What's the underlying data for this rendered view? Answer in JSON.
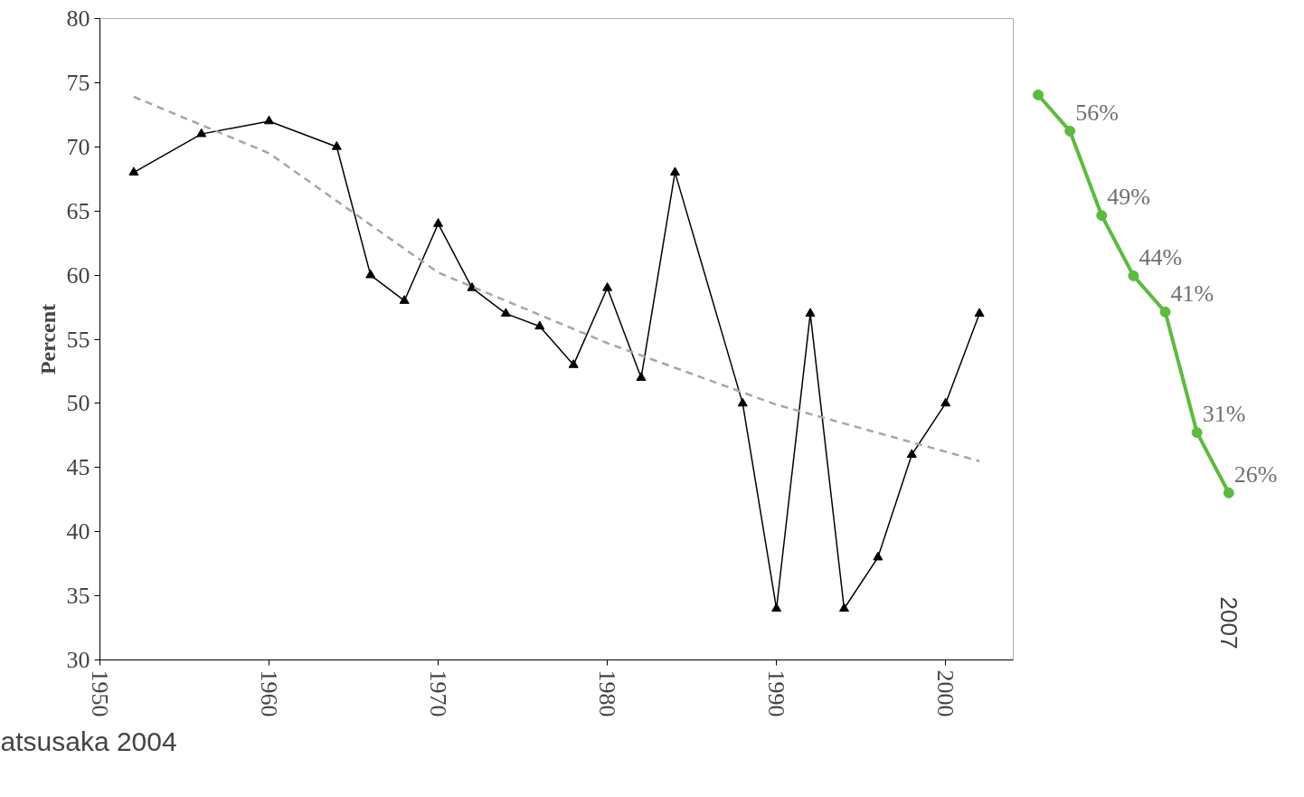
{
  "chart_data": [
    {
      "type": "line",
      "ylabel": "Percent",
      "x": [
        1952,
        1956,
        1960,
        1964,
        1966,
        1968,
        1970,
        1972,
        1974,
        1976,
        1978,
        1980,
        1982,
        1984,
        1988,
        1990,
        1992,
        1994,
        1996,
        1998,
        2000,
        2002
      ],
      "series": [
        {
          "color": "#000000",
          "values": [
            68,
            71,
            72,
            70,
            60,
            58,
            64,
            59,
            57,
            56,
            53,
            59,
            52,
            68,
            50,
            34,
            57,
            34,
            38,
            46,
            50,
            57
          ]
        },
        {
          "type": "line",
          "x": [
            1952,
            1960,
            1970,
            1980,
            1990,
            2002
          ],
          "values": [
            73.9,
            69.5,
            60.2,
            54.7,
            49.9,
            45.5
          ],
          "color": "#a6a6a6",
          "line_style": "dashed",
          "marker": "none"
        }
      ],
      "marker": "triangle",
      "line_style": "solid",
      "xlim": [
        1950,
        2004
      ],
      "xticks": [
        1950,
        1960,
        1970,
        1980,
        1990,
        2000
      ],
      "ylim": [
        30,
        80
      ],
      "yticks": [
        30,
        35,
        40,
        45,
        50,
        55,
        60,
        65,
        70,
        75,
        80
      ],
      "grid": false,
      "annotations": [
        "atsusaka 2004"
      ]
    },
    {
      "type": "line",
      "categories": [
        null,
        null,
        null,
        null,
        null,
        null,
        null
      ],
      "annotations": [
        "2007"
      ],
      "series": [
        {
          "color": "#5dbb3f",
          "values": [
            59,
            56,
            49,
            44,
            41,
            31,
            26
          ],
          "value_labels": [
            null,
            "56%",
            "49%",
            "44%",
            "41%",
            "31%",
            "26%"
          ]
        }
      ],
      "marker": "circle",
      "line_style": "solid",
      "tick_labels": false,
      "grid": false
    }
  ]
}
